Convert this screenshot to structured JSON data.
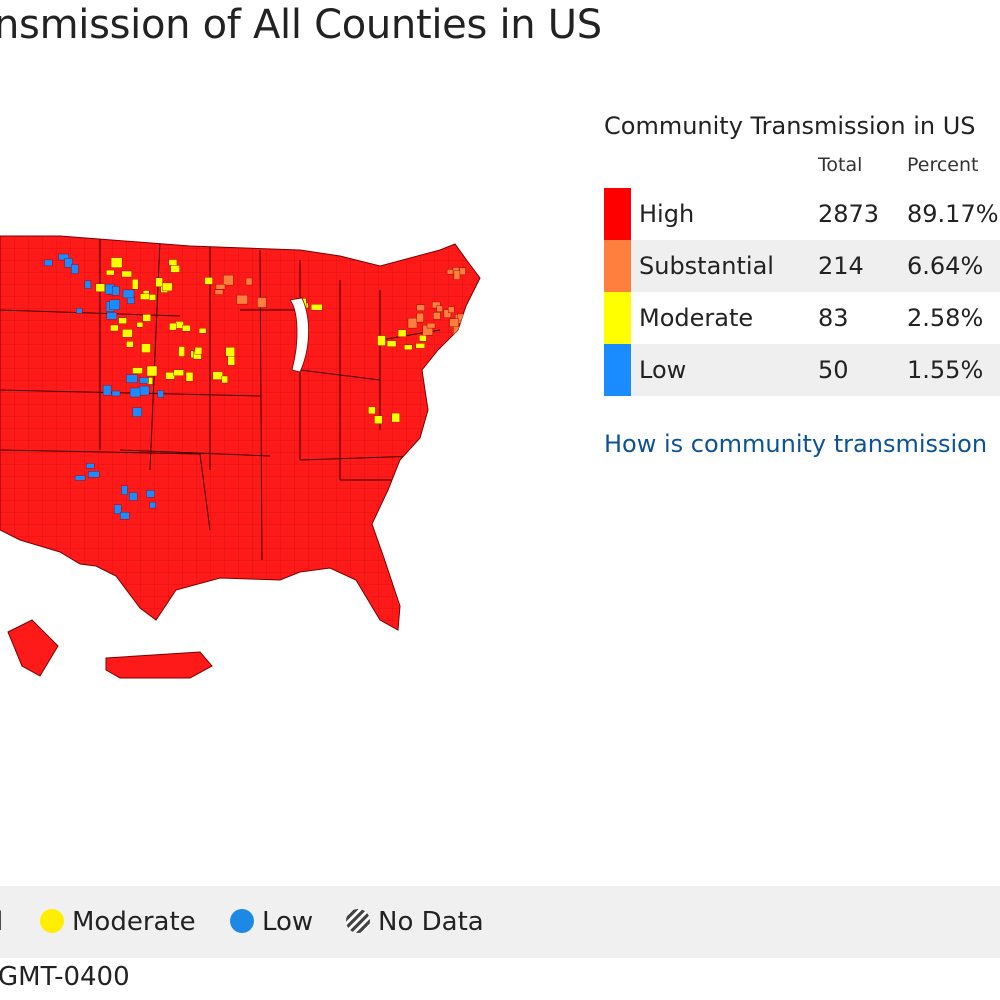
{
  "page": {
    "title": "nsmission of All Counties in US"
  },
  "summary": {
    "title": "Community Transmission in US",
    "columns": {
      "total": "Total",
      "percent": "Percent"
    },
    "rows": [
      {
        "level": "High",
        "total": "2873",
        "percent": "89.17%",
        "color": "#ff0000"
      },
      {
        "level": "Substantial",
        "total": "214",
        "percent": "6.64%",
        "color": "#ff7f3f"
      },
      {
        "level": "Moderate",
        "total": "83",
        "percent": "2.58%",
        "color": "#ffff00"
      },
      {
        "level": "Low",
        "total": "50",
        "percent": "1.55%",
        "color": "#1a8cff"
      }
    ],
    "help_link": "How is community transmission"
  },
  "map_legend": {
    "items": [
      {
        "label": "l",
        "icon": "none"
      },
      {
        "label": "Moderate",
        "color": "#ffee00",
        "icon": "yellow-dot-icon"
      },
      {
        "label": "Low",
        "color": "#1e88e5",
        "icon": "blue-dot-icon"
      },
      {
        "label": "No Data",
        "icon": "hatched-circle-icon"
      }
    ]
  },
  "footer": {
    "timestamp_fragment": "GMT-0400"
  },
  "map": {
    "regions": [
      "Contiguous US",
      "Hawaii",
      "Puerto Rico"
    ],
    "dominant_color": "#ff1a1a",
    "border_color": "#8b0000"
  }
}
